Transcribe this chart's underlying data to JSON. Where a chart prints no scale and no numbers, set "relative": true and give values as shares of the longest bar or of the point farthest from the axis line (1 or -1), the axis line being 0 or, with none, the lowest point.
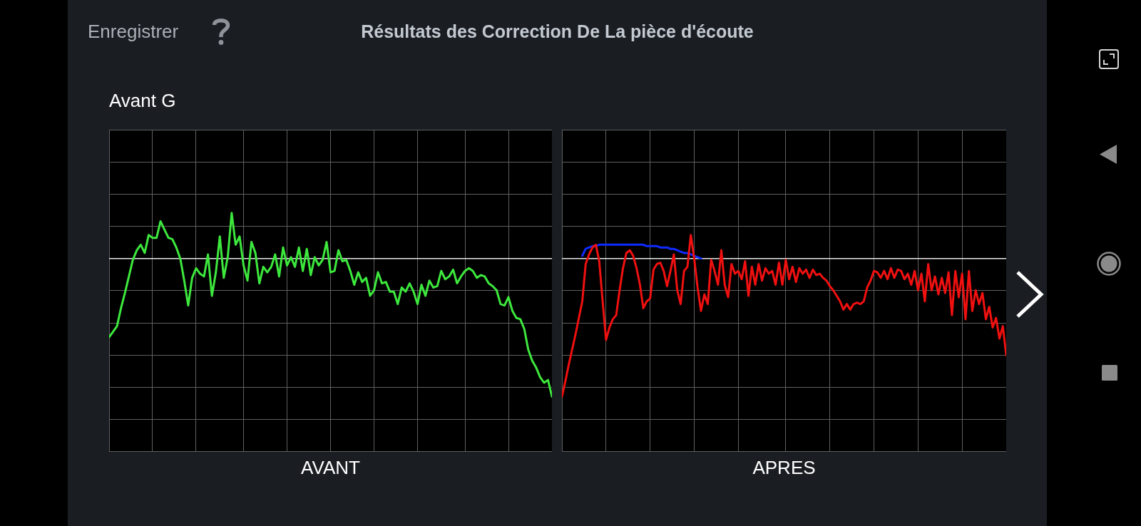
{
  "chart_data": [
    {
      "type": "line",
      "title": "Résultats des Correction De La pièce d'écoute",
      "subtitle": "Avant G",
      "annotations": [
        "Enregistrer"
      ],
      "xlabel": "AVANT",
      "relative": true,
      "grid": true,
      "categories": [
        null,
        null,
        null,
        null,
        null,
        null,
        null,
        null,
        null,
        null,
        null,
        null,
        null,
        null,
        null,
        null,
        null,
        null,
        null,
        null,
        null,
        null,
        null,
        null,
        null,
        null,
        null,
        null,
        null,
        null,
        null,
        null,
        null,
        null,
        null,
        null,
        null,
        null,
        null,
        null,
        null,
        null,
        null,
        null,
        null,
        null,
        null,
        null,
        null,
        null,
        null,
        null,
        null,
        null,
        null,
        null,
        null,
        null,
        null,
        null,
        null,
        null,
        null,
        null,
        null,
        null,
        null,
        null,
        null,
        null,
        null,
        null,
        null,
        null,
        null,
        null,
        null,
        null,
        null,
        null,
        null,
        null,
        null,
        null,
        null,
        null,
        null,
        null,
        null,
        null,
        null,
        null,
        null,
        null,
        null,
        null,
        null,
        null,
        null,
        null,
        null,
        null,
        null,
        null,
        null,
        null,
        null,
        null,
        null,
        null,
        null,
        null,
        null
      ],
      "series": [
        {
          "color": "#3de83d",
          "values": [
            -0.57,
            -0.53,
            -0.49,
            -0.36,
            -0.25,
            -0.13,
            -0.01,
            0.06,
            0.1,
            0.04,
            0.17,
            0.15,
            0.15,
            0.27,
            0.21,
            0.15,
            0.14,
            0.08,
            0,
            -0.16,
            -0.34,
            -0.14,
            -0.07,
            -0.11,
            -0.13,
            0.03,
            -0.27,
            -0.1,
            0.16,
            -0.14,
            0.01,
            0.33,
            0.1,
            0.16,
            -0.05,
            -0.16,
            0.12,
            0.04,
            -0.18,
            -0.06,
            -0.1,
            -0.06,
            0.03,
            -0.13,
            0.08,
            -0.05,
            0.01,
            -0.06,
            0.08,
            -0.09,
            0.07,
            -0.12,
            0.01,
            -0.05,
            -0.01,
            0.12,
            -0.1,
            -0.09,
            0.06,
            -0.02,
            -0.01,
            -0.09,
            -0.19,
            -0.1,
            -0.17,
            -0.14,
            -0.27,
            -0.23,
            -0.1,
            -0.18,
            -0.17,
            -0.24,
            -0.24,
            -0.33,
            -0.21,
            -0.24,
            -0.18,
            -0.24,
            -0.33,
            -0.19,
            -0.27,
            -0.16,
            -0.21,
            -0.2,
            -0.09,
            -0.15,
            -0.13,
            -0.08,
            -0.18,
            -0.13,
            -0.09,
            -0.07,
            -0.09,
            -0.14,
            -0.12,
            -0.13,
            -0.18,
            -0.2,
            -0.23,
            -0.33,
            -0.34,
            -0.28,
            -0.38,
            -0.43,
            -0.44,
            -0.51,
            -0.66,
            -0.74,
            -0.79,
            -0.86,
            -0.9,
            -0.88,
            -1
          ]
        }
      ]
    },
    {
      "type": "line",
      "xlabel": "APRES",
      "relative": true,
      "grid": true,
      "categories": [
        null,
        null,
        null,
        null,
        null,
        null,
        null,
        null,
        null,
        null,
        null,
        null,
        null,
        null,
        null,
        null,
        null,
        null,
        null,
        null,
        null,
        null,
        null,
        null,
        null,
        null,
        null,
        null,
        null,
        null,
        null,
        null,
        null,
        null,
        null,
        null,
        null,
        null,
        null,
        null,
        null,
        null,
        null,
        null,
        null,
        null,
        null,
        null,
        null,
        null,
        null,
        null,
        null,
        null,
        null,
        null,
        null,
        null,
        null,
        null,
        null,
        null,
        null,
        null,
        null,
        null,
        null,
        null,
        null,
        null,
        null,
        null,
        null,
        null,
        null,
        null,
        null,
        null,
        null,
        null,
        null,
        null,
        null,
        null,
        null,
        null,
        null,
        null,
        null,
        null,
        null,
        null,
        null,
        null,
        null,
        null,
        null,
        null,
        null,
        null,
        null,
        null,
        null,
        null,
        null,
        null,
        null,
        null,
        null,
        null,
        null,
        null,
        null,
        null,
        null,
        null,
        null,
        null,
        null,
        null,
        null,
        null,
        null,
        null,
        null,
        null,
        null,
        null,
        null,
        null,
        null,
        null
      ],
      "series": [
        {
          "color": "#f01010",
          "values": [
            -1,
            -0.89,
            -0.77,
            -0.66,
            -0.55,
            -0.43,
            -0.31,
            -0.04,
            0.03,
            0.08,
            0.1,
            -0.02,
            -0.31,
            -0.59,
            -0.5,
            -0.44,
            -0.41,
            -0.23,
            -0.07,
            0.04,
            0.06,
            0.02,
            -0.07,
            -0.19,
            -0.36,
            -0.31,
            -0.29,
            -0.08,
            -0.04,
            -0.03,
            -0.09,
            -0.2,
            -0.09,
            0.03,
            -0.23,
            -0.33,
            -0.09,
            -0.06,
            0.17,
            0,
            -0.21,
            -0.38,
            -0.26,
            -0.33,
            -0.01,
            -0.09,
            -0.19,
            0.06,
            -0.19,
            -0.28,
            -0.04,
            -0.11,
            -0.09,
            -0.15,
            -0.02,
            -0.27,
            -0.06,
            -0.19,
            -0.04,
            -0.16,
            -0.07,
            -0.11,
            -0.09,
            -0.19,
            -0.03,
            -0.19,
            -0.01,
            -0.15,
            -0.06,
            -0.17,
            -0.07,
            -0.11,
            -0.08,
            -0.14,
            -0.08,
            -0.12,
            -0.11,
            -0.14,
            -0.16,
            -0.2,
            -0.23,
            -0.27,
            -0.31,
            -0.37,
            -0.33,
            -0.37,
            -0.33,
            -0.32,
            -0.33,
            -0.31,
            -0.21,
            -0.16,
            -0.09,
            -0.1,
            -0.14,
            -0.09,
            -0.15,
            -0.07,
            -0.14,
            -0.08,
            -0.09,
            -0.15,
            -0.11,
            -0.19,
            -0.09,
            -0.23,
            -0.11,
            -0.31,
            -0.04,
            -0.23,
            -0.13,
            -0.26,
            -0.14,
            -0.25,
            -0.1,
            -0.41,
            -0.09,
            -0.28,
            -0.11,
            -0.44,
            -0.09,
            -0.38,
            -0.23,
            -0.33,
            -0.25,
            -0.44,
            -0.35,
            -0.5,
            -0.43,
            -0.58,
            -0.49,
            -0.7
          ]
        },
        {
          "color": "#0f2bff",
          "values": [
            null,
            null,
            null,
            null,
            null,
            null,
            0.02,
            0.07,
            0.08,
            0.09,
            0.09,
            0.1,
            0.1,
            0.1,
            0.1,
            0.1,
            0.1,
            0.1,
            0.1,
            0.1,
            0.1,
            0.1,
            0.1,
            0.1,
            0.1,
            0.09,
            0.09,
            0.09,
            0.09,
            0.08,
            0.08,
            0.08,
            0.07,
            0.07,
            0.06,
            0.05,
            0.04,
            0.04,
            0.03,
            0.02,
            0.01,
            0,
            null,
            null,
            null,
            null,
            null,
            null,
            null,
            null,
            null,
            null,
            null,
            null,
            null,
            null,
            null,
            null,
            null,
            null,
            null,
            null,
            null,
            null,
            null,
            null,
            null,
            null,
            null,
            null,
            null,
            null,
            null,
            null,
            null,
            null,
            null,
            null,
            null,
            null,
            null,
            null,
            null,
            null,
            null,
            null,
            null,
            null,
            null,
            null,
            null,
            null,
            null,
            null,
            null,
            null,
            null,
            null,
            null,
            null,
            null,
            null,
            null,
            null,
            null,
            null,
            null,
            null,
            null,
            null,
            null,
            null,
            null,
            null,
            null,
            null,
            null,
            null,
            null,
            null,
            null,
            null,
            null,
            null,
            null,
            null,
            null,
            null,
            null,
            null,
            null,
            null
          ]
        }
      ]
    }
  ]
}
